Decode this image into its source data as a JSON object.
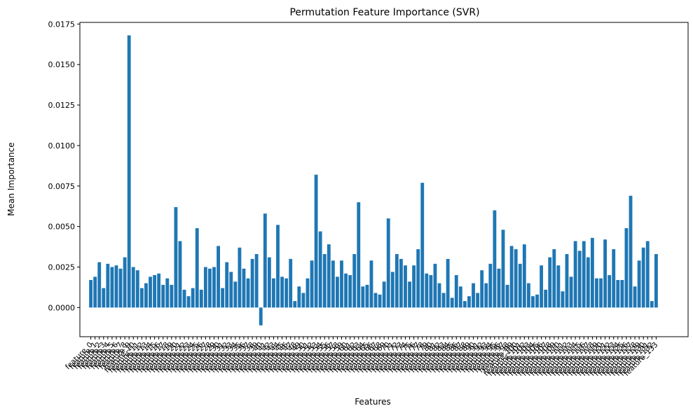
{
  "chart_data": {
    "type": "bar",
    "title": "Permutation Feature Importance (SVR)",
    "xlabel": "Features",
    "ylabel": "Mean Importance",
    "ylim": [
      -0.0018,
      0.0176
    ],
    "yticks": [
      "0.0000",
      "0.0025",
      "0.0050",
      "0.0075",
      "0.0100",
      "0.0125",
      "0.0150",
      "0.0175"
    ],
    "ytick_values": [
      0,
      0.0025,
      0.005,
      0.0075,
      0.01,
      0.0125,
      0.015,
      0.0175
    ],
    "categories": [
      "feature_0",
      "feature_1",
      "feature_2",
      "feature_3",
      "feature_4",
      "feature_5",
      "feature_6",
      "feature_7",
      "feature_8",
      "feature_9",
      "feature_10",
      "feature_11",
      "feature_12",
      "feature_13",
      "feature_14",
      "feature_15",
      "feature_16",
      "feature_17",
      "feature_18",
      "feature_19",
      "feature_20",
      "feature_21",
      "feature_22",
      "feature_23",
      "feature_24",
      "feature_25",
      "feature_26",
      "feature_27",
      "feature_28",
      "feature_29",
      "feature_30",
      "feature_31",
      "feature_32",
      "feature_33",
      "feature_34",
      "feature_35",
      "feature_36",
      "feature_37",
      "feature_38",
      "feature_39",
      "feature_40",
      "feature_41",
      "feature_42",
      "feature_43",
      "feature_44",
      "feature_45",
      "feature_46",
      "feature_47",
      "feature_48",
      "feature_49",
      "feature_50",
      "feature_51",
      "feature_52",
      "feature_53",
      "feature_54",
      "feature_55",
      "feature_56",
      "feature_57",
      "feature_58",
      "feature_59",
      "feature_60",
      "feature_61",
      "feature_62",
      "feature_63",
      "feature_64",
      "feature_65",
      "feature_66",
      "feature_67",
      "feature_68",
      "feature_69",
      "feature_70",
      "feature_71",
      "feature_72",
      "feature_73",
      "feature_74",
      "feature_75",
      "feature_76",
      "feature_77",
      "feature_78",
      "feature_79",
      "feature_80",
      "feature_81",
      "feature_82",
      "feature_83",
      "feature_84",
      "feature_85",
      "feature_86",
      "feature_87",
      "feature_88",
      "feature_89",
      "feature_90",
      "feature_91",
      "feature_92",
      "feature_93",
      "feature_94",
      "feature_95",
      "feature_96",
      "feature_97",
      "feature_98",
      "feature_99",
      "feature_100",
      "feature_101",
      "feature_102",
      "feature_103",
      "feature_104",
      "feature_105",
      "feature_106",
      "feature_107",
      "feature_108",
      "feature_109",
      "feature_110",
      "feature_111",
      "feature_112",
      "feature_113",
      "feature_114",
      "feature_115",
      "feature_116",
      "feature_117",
      "feature_118",
      "feature_119",
      "feature_120",
      "feature_121",
      "feature_122",
      "feature_123",
      "feature_124",
      "feature_125",
      "feature_126",
      "feature_127",
      "feature_128",
      "feature_129",
      "feature_130",
      "feature_131",
      "feature_132",
      "feature_133"
    ],
    "values": [
      0.0017,
      0.0019,
      0.0028,
      0.0012,
      0.0027,
      0.0025,
      0.0026,
      0.0024,
      0.0031,
      0.0168,
      0.0025,
      0.0023,
      0.0012,
      0.0015,
      0.0019,
      0.002,
      0.0021,
      0.0014,
      0.0018,
      0.0014,
      0.0062,
      0.0041,
      0.0011,
      0.0007,
      0.0012,
      0.0049,
      0.0011,
      0.0025,
      0.0024,
      0.0025,
      0.0038,
      0.0012,
      0.0028,
      0.0022,
      0.0016,
      0.0037,
      0.0024,
      0.0018,
      0.003,
      0.0033,
      -0.0011,
      0.0058,
      0.0031,
      0.0018,
      0.0051,
      0.0019,
      0.0018,
      0.003,
      0.0004,
      0.0013,
      0.0009,
      0.0018,
      0.0029,
      0.0082,
      0.0047,
      0.0033,
      0.0039,
      0.0029,
      0.0019,
      0.0029,
      0.0021,
      0.002,
      0.0033,
      0.0065,
      0.0013,
      0.0014,
      0.0029,
      0.0009,
      0.0008,
      0.0016,
      0.0055,
      0.0022,
      0.0033,
      0.003,
      0.0026,
      0.0016,
      0.0026,
      0.0036,
      0.0077,
      0.0021,
      0.002,
      0.0027,
      0.0015,
      0.0009,
      0.003,
      0.0006,
      0.002,
      0.0013,
      0.0004,
      0.0007,
      0.0015,
      0.0009,
      0.0023,
      0.0015,
      0.0027,
      0.006,
      0.0024,
      0.0048,
      0.0014,
      0.0038,
      0.0036,
      0.0027,
      0.0039,
      0.0015,
      0.0007,
      0.0008,
      0.0026,
      0.0011,
      0.0031,
      0.0036,
      0.0026,
      0.001,
      0.0033,
      0.0019,
      0.0041,
      0.0035,
      0.0041,
      0.0031,
      0.0043,
      0.0018,
      0.0018,
      0.0042,
      0.002,
      0.0036,
      0.0017,
      0.0017,
      0.0049,
      0.0069,
      0.0013,
      0.0029,
      0.0037,
      0.0041,
      0.0004,
      0.0033
    ],
    "bar_color": "#1f77b4",
    "grid": false,
    "legend": "none"
  }
}
